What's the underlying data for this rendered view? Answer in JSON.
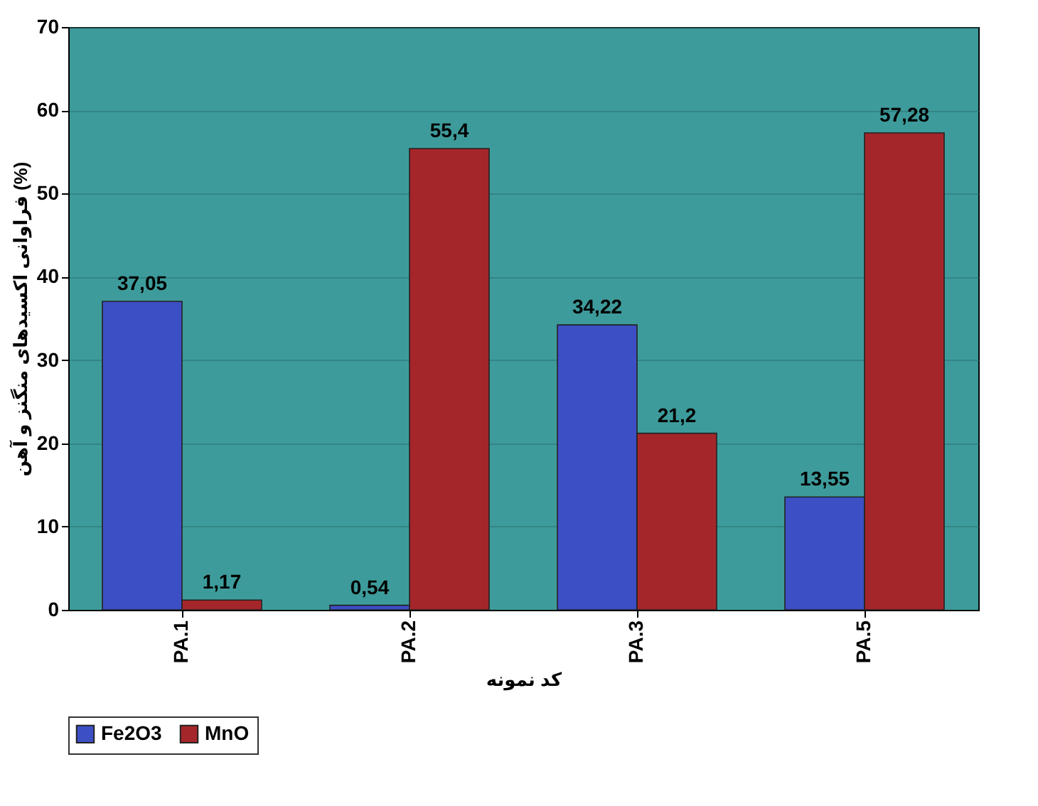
{
  "chart_data": {
    "type": "bar",
    "xlabel": "کد نمونه",
    "ylabel": "فراوانی اکسیدهای منگنز و آهن (%)",
    "categories": [
      "PA.1",
      "PA.2",
      "PA.3",
      "PA.5"
    ],
    "series": [
      {
        "name": "Fe2O3",
        "color": "#3d4fc4",
        "values": [
          37.05,
          0.54,
          34.22,
          13.55
        ],
        "value_labels": [
          "37,05",
          "0,54",
          "34,22",
          "13,55"
        ]
      },
      {
        "name": "MnO",
        "color": "#a5262a",
        "values": [
          1.17,
          55.4,
          21.2,
          57.28
        ],
        "value_labels": [
          "1,17",
          "55,4",
          "21,2",
          "57,28"
        ]
      }
    ],
    "ylim": [
      0,
      70
    ],
    "yticks": [
      0,
      10,
      20,
      30,
      40,
      50,
      60,
      70
    ],
    "grid": "y",
    "legend": "bottom"
  }
}
